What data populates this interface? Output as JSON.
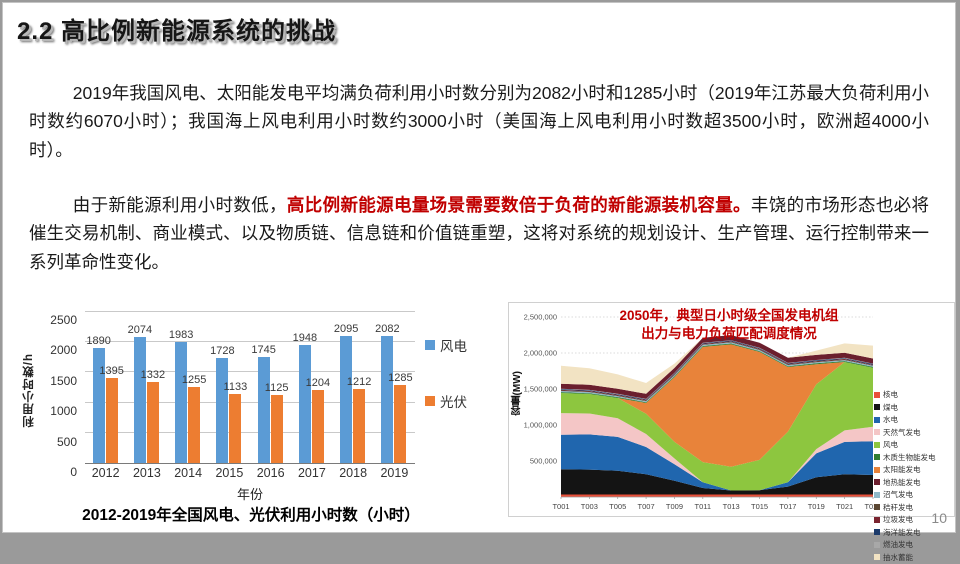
{
  "slide": {
    "title": "2.2 高比例新能源系统的挑战",
    "page_number": "10"
  },
  "paragraphs": {
    "p1": "2019年我国风电、太阳能发电平均满负荷利用小时数分别为2082小时和1285小时（2019年江苏最大负荷利用小时数约6070小时）；我国海上风电利用小时数约3000小时（美国海上风电利用小时数超3500小时，欧洲超4000小时）。",
    "p2_lead": "由于新能源利用小时数低，",
    "p2_highlight": "高比例新能源电量场景需要数倍于负荷的新能源装机容量。",
    "p2_rest": "丰饶的市场形态也必将催生交易机制、商业模式、以及物质链、信息链和价值链重塑，这将对系统的规划设计、生产管理、运行控制带来一系列革命性变化。",
    "highlight_color": "#C00000"
  },
  "chart_data": [
    {
      "type": "bar",
      "caption": "2012-2019年全国风电、光伏利用小时数（小时）",
      "xlabel": "年份",
      "ylabel": "利用小时数/h",
      "ylim": [
        0,
        2500
      ],
      "ytick_step": 500,
      "grid": true,
      "legend_position": "right",
      "categories": [
        "2012",
        "2013",
        "2014",
        "2015",
        "2016",
        "2017",
        "2018",
        "2019"
      ],
      "series": [
        {
          "name": "风电",
          "color": "#5B9BD5",
          "values": [
            1890,
            2074,
            1983,
            1728,
            1745,
            1948,
            2095,
            2082
          ]
        },
        {
          "name": "光伏",
          "color": "#ED7D31",
          "values": [
            1395,
            1332,
            1255,
            1133,
            1125,
            1204,
            1212,
            1285
          ]
        }
      ]
    },
    {
      "type": "area",
      "title_lines": [
        "2050年，典型日小时级全国发电机组",
        "出力与电力负荷匹配调度情况"
      ],
      "title_color": "#C00000",
      "ylabel": "容量(MW)",
      "ylim": [
        0,
        2500000
      ],
      "ytick_step": 500000,
      "grid": true,
      "legend_position": "right",
      "x": [
        "T001",
        "T003",
        "T005",
        "T007",
        "T009",
        "T011",
        "T013",
        "T015",
        "T017",
        "T019",
        "T021",
        "T023"
      ],
      "series": [
        {
          "name": "核电",
          "color": "#E8503A",
          "values": [
            35000,
            35000,
            35000,
            35000,
            35000,
            35000,
            35000,
            35000,
            35000,
            35000,
            35000,
            35000
          ]
        },
        {
          "name": "煤电",
          "color": "#141414",
          "values": [
            350000,
            345000,
            330000,
            280000,
            190000,
            90000,
            55000,
            60000,
            110000,
            240000,
            280000,
            270000
          ]
        },
        {
          "name": "水电",
          "color": "#2066AE",
          "values": [
            480000,
            490000,
            470000,
            380000,
            230000,
            80000,
            0,
            0,
            60000,
            330000,
            450000,
            470000
          ]
        },
        {
          "name": "天然气发电",
          "color": "#F4C6C6",
          "values": [
            300000,
            290000,
            260000,
            180000,
            80000,
            0,
            0,
            0,
            0,
            60000,
            160000,
            200000
          ]
        },
        {
          "name": "风电",
          "color": "#8DC63F",
          "values": [
            280000,
            270000,
            280000,
            280000,
            230000,
            280000,
            330000,
            420000,
            700000,
            900000,
            950000,
            820000
          ]
        },
        {
          "name": "太阳能发电",
          "color": "#E8833A",
          "values": [
            0,
            0,
            0,
            150000,
            900000,
            1600000,
            1700000,
            1500000,
            900000,
            280000,
            0,
            0
          ]
        },
        {
          "name": "木质生物能发电",
          "color": "#2E7D32",
          "values": [
            12000,
            12000,
            12000,
            12000,
            12000,
            12000,
            12000,
            12000,
            12000,
            12000,
            12000,
            12000
          ]
        },
        {
          "name": "沼气发电",
          "color": "#8FB8C8",
          "values": [
            15000,
            15000,
            15000,
            15000,
            15000,
            15000,
            15000,
            15000,
            15000,
            15000,
            15000,
            15000
          ]
        },
        {
          "name": "秸秆发电",
          "color": "#5A4632",
          "values": [
            8000,
            8000,
            8000,
            8000,
            8000,
            8000,
            8000,
            8000,
            8000,
            8000,
            8000,
            8000
          ]
        },
        {
          "name": "垃圾发电",
          "color": "#7A2430",
          "values": [
            8000,
            8000,
            8000,
            8000,
            8000,
            8000,
            8000,
            8000,
            8000,
            8000,
            8000,
            8000
          ]
        },
        {
          "name": "海洋能发电",
          "color": "#1B3A6B",
          "values": [
            10000,
            10000,
            10000,
            10000,
            10000,
            10000,
            10000,
            10000,
            10000,
            10000,
            10000,
            10000
          ]
        },
        {
          "name": "燃油发电",
          "color": "#A8A8A8",
          "values": [
            5000,
            5000,
            5000,
            5000,
            5000,
            5000,
            5000,
            5000,
            5000,
            5000,
            5000,
            5000
          ]
        },
        {
          "name": "地热能发电",
          "color": "#6B1F2E",
          "values": [
            70000,
            70000,
            70000,
            70000,
            70000,
            70000,
            70000,
            70000,
            70000,
            70000,
            70000,
            70000
          ]
        },
        {
          "name": "抽水蓄能",
          "color": "#F2E3C3",
          "values": [
            250000,
            230000,
            200000,
            150000,
            60000,
            0,
            0,
            0,
            0,
            60000,
            130000,
            180000
          ]
        }
      ],
      "legend_order": [
        "核电",
        "煤电",
        "水电",
        "天然气发电",
        "风电",
        "木质生物能发电",
        "太阳能发电",
        "地热能发电",
        "沼气发电",
        "秸秆发电",
        "垃圾发电",
        "海洋能发电",
        "燃油发电",
        "抽水蓄能"
      ]
    }
  ]
}
